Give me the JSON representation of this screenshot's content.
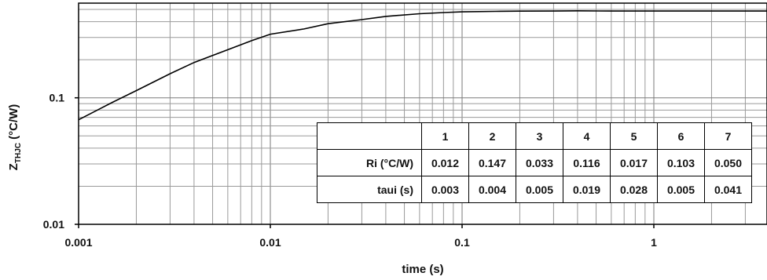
{
  "chart_data": {
    "type": "line",
    "xlabel": "time (s)",
    "ylabel_main": "Z",
    "ylabel_sub": "THJC",
    "ylabel_unit": " (°C/W)",
    "xscale": "log",
    "yscale": "log",
    "xlim": [
      0.001,
      4
    ],
    "ylim": [
      0.01,
      0.56
    ],
    "grid": true,
    "x_ticks": [
      "0.001",
      "0.01",
      "0.1",
      "1"
    ],
    "y_ticks": [
      "0.01",
      "0.1"
    ],
    "series": [
      {
        "x": [
          0.001,
          0.0015,
          0.002,
          0.003,
          0.004,
          0.006,
          0.008,
          0.01,
          0.015,
          0.02,
          0.03,
          0.04,
          0.06,
          0.08,
          0.1,
          0.15,
          0.2,
          0.3,
          0.4,
          0.6,
          1,
          2,
          4
        ],
        "y": [
          0.067,
          0.092,
          0.114,
          0.155,
          0.19,
          0.24,
          0.283,
          0.318,
          0.35,
          0.385,
          0.415,
          0.44,
          0.462,
          0.472,
          0.478,
          0.482,
          0.484,
          0.485,
          0.487,
          0.485,
          0.485,
          0.485,
          0.485
        ]
      }
    ]
  },
  "table": {
    "headers": [
      "1",
      "2",
      "3",
      "4",
      "5",
      "6",
      "7"
    ],
    "rows": [
      {
        "label": "Ri (°C/W)",
        "values": [
          "0.012",
          "0.147",
          "0.033",
          "0.116",
          "0.017",
          "0.103",
          "0.050"
        ]
      },
      {
        "label": "taui (s)",
        "values": [
          "0.003",
          "0.004",
          "0.005",
          "0.019",
          "0.028",
          "0.005",
          "0.041"
        ]
      }
    ]
  }
}
